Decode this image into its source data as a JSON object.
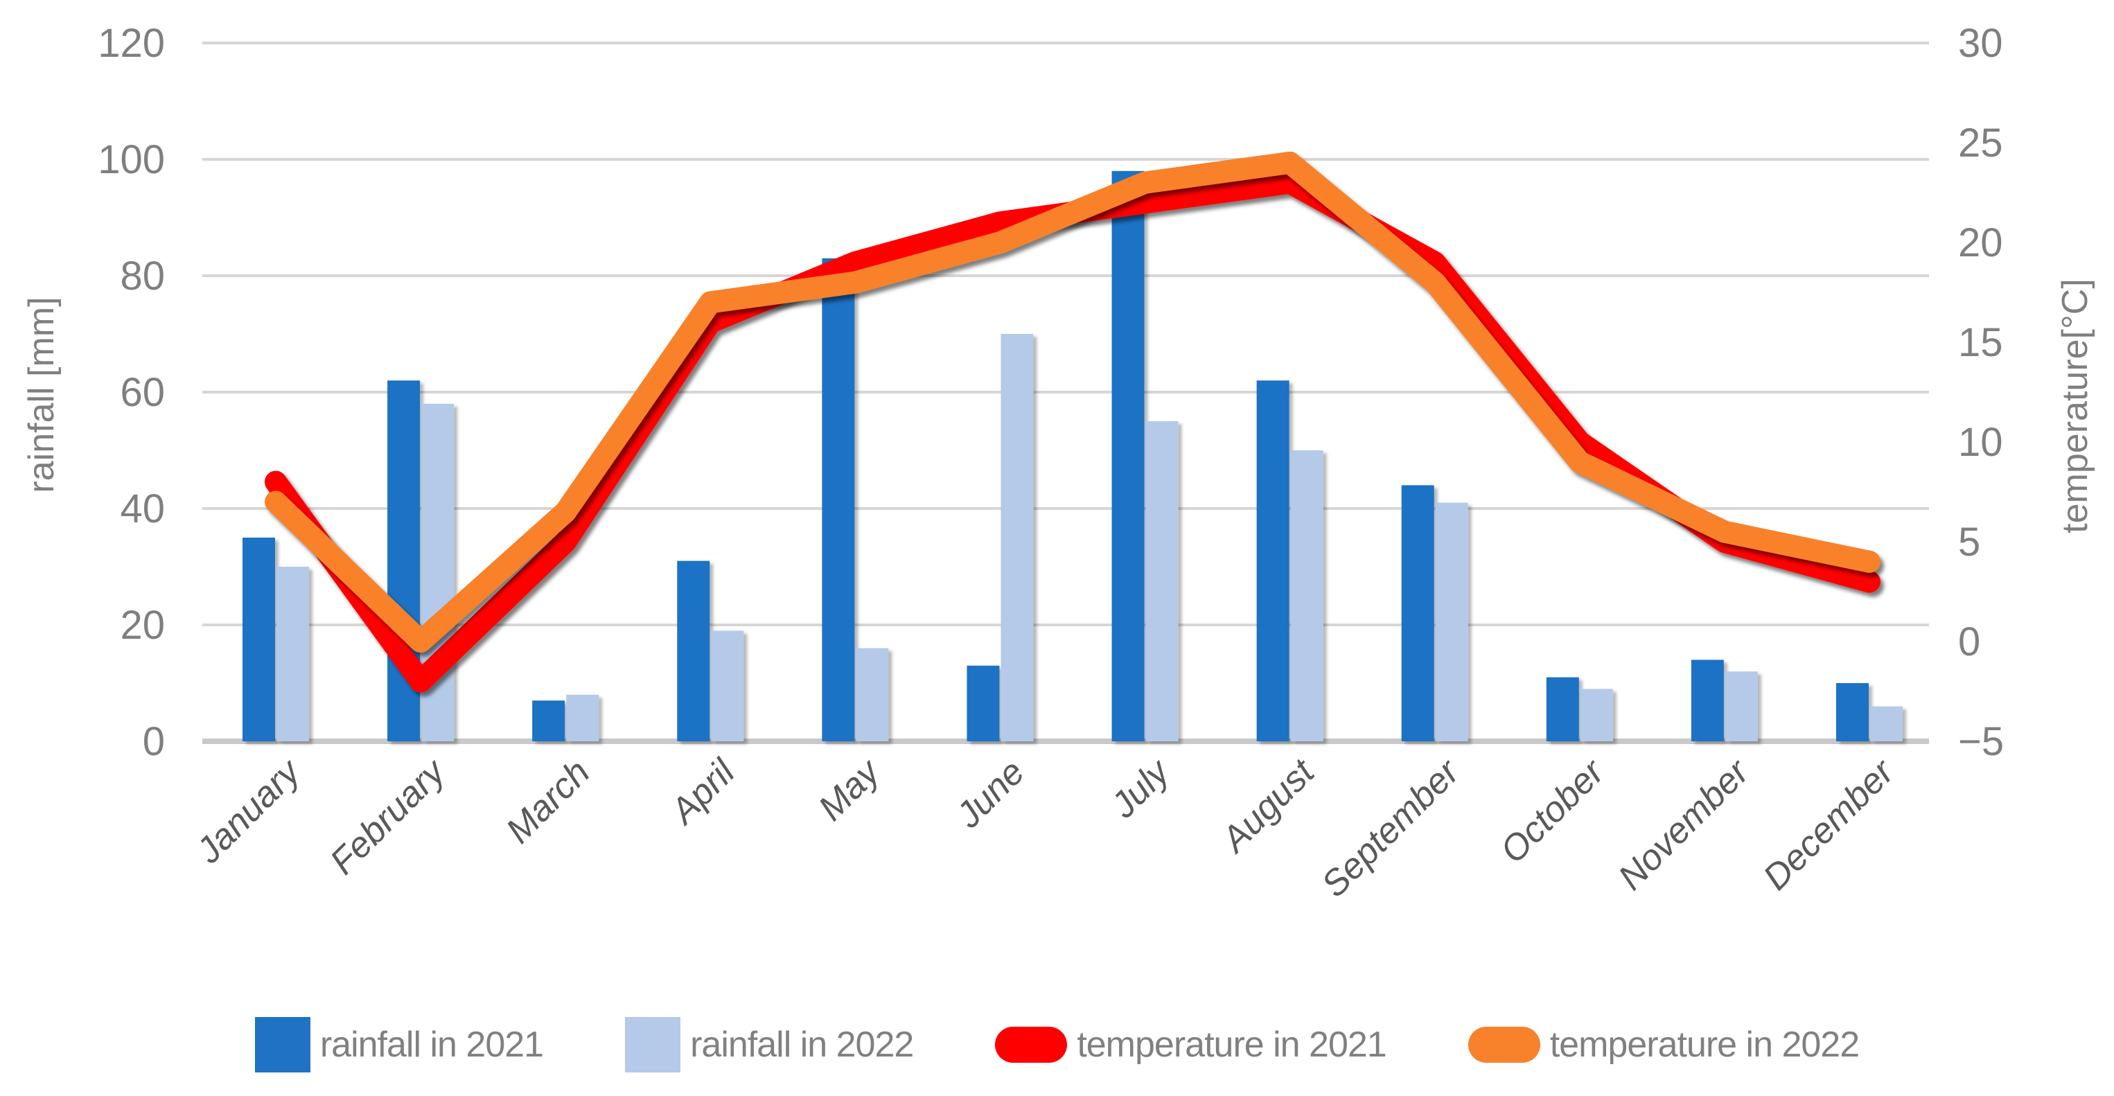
{
  "chart_data": {
    "type": "combo-bar-line",
    "title": "",
    "categories": [
      "January",
      "February",
      "March",
      "April",
      "May",
      "June",
      "July",
      "August",
      "September",
      "October",
      "November",
      "December"
    ],
    "series": [
      {
        "name": "rainfall in 2021",
        "type": "bar",
        "axis": "left",
        "color": "#1F72C4",
        "values": [
          35,
          62,
          7,
          31,
          83,
          13,
          98,
          62,
          44,
          11,
          14,
          10
        ]
      },
      {
        "name": "rainfall in 2022",
        "type": "bar",
        "axis": "left",
        "color": "#B5CAE8",
        "values": [
          30,
          58,
          8,
          19,
          16,
          70,
          55,
          50,
          41,
          9,
          12,
          6
        ]
      },
      {
        "name": "temperature in 2021",
        "type": "line",
        "axis": "right",
        "color": "#FE0000",
        "values": [
          8,
          -2,
          5,
          16,
          19,
          21,
          22,
          23,
          19,
          10,
          5,
          3
        ]
      },
      {
        "name": "temperature in 2022",
        "type": "line",
        "axis": "right",
        "color": "#F8812B",
        "values": [
          7,
          0,
          6.5,
          17,
          18,
          20,
          23,
          24,
          18,
          9,
          5.5,
          4
        ]
      }
    ],
    "left_axis": {
      "label": "rainfall [mm]",
      "min": 0,
      "max": 120,
      "step": 20,
      "ticks": [
        "0",
        "20",
        "40",
        "60",
        "80",
        "100",
        "120"
      ]
    },
    "right_axis": {
      "label": "temperature[°C]",
      "min": -5,
      "max": 30,
      "step": 5,
      "ticks": [
        "−5",
        "0",
        "5",
        "10",
        "15",
        "20",
        "25",
        "30"
      ]
    },
    "grid": true,
    "legend_position": "bottom",
    "styles": {
      "gridline_color": "#D6D6D6",
      "baseline_color": "#C9C9C9",
      "tick_label_color": "#7F7F7F",
      "month_label_color": "#595959",
      "legend_text_color": "#808080"
    }
  }
}
